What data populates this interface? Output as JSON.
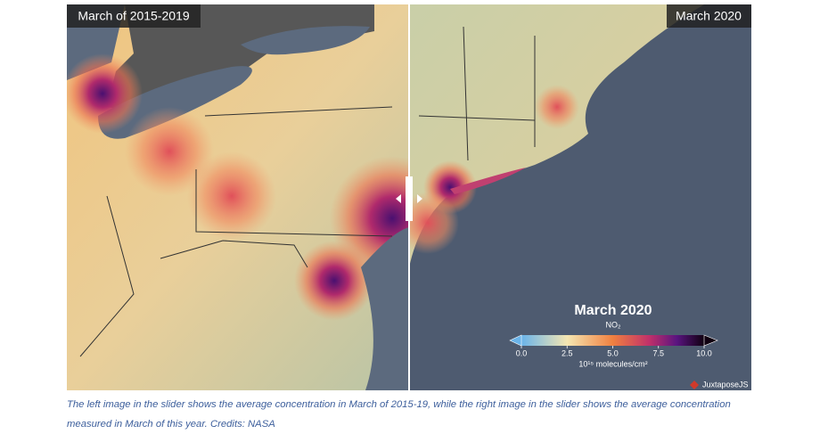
{
  "slider": {
    "left_label": "March of 2015-2019",
    "right_label": "March 2020",
    "credit": "JuxtaposeJS"
  },
  "colorbar": {
    "title": "March 2020",
    "subtitle": "NO₂",
    "lim": [
      0,
      10
    ],
    "ticks": [
      {
        "value": 0,
        "label": "0.0"
      },
      {
        "value": 2.5,
        "label": "2.5"
      },
      {
        "value": 5,
        "label": "5.0"
      },
      {
        "value": 7.5,
        "label": "7.5"
      },
      {
        "value": 10,
        "label": "10.0"
      }
    ],
    "unit": "10¹⁵ molecules/cm²"
  },
  "caption": "The left image in the slider shows the average concentration in March of 2015-19, while the right image in the slider shows the average concentration measured in March of this year. Credits: NASA"
}
